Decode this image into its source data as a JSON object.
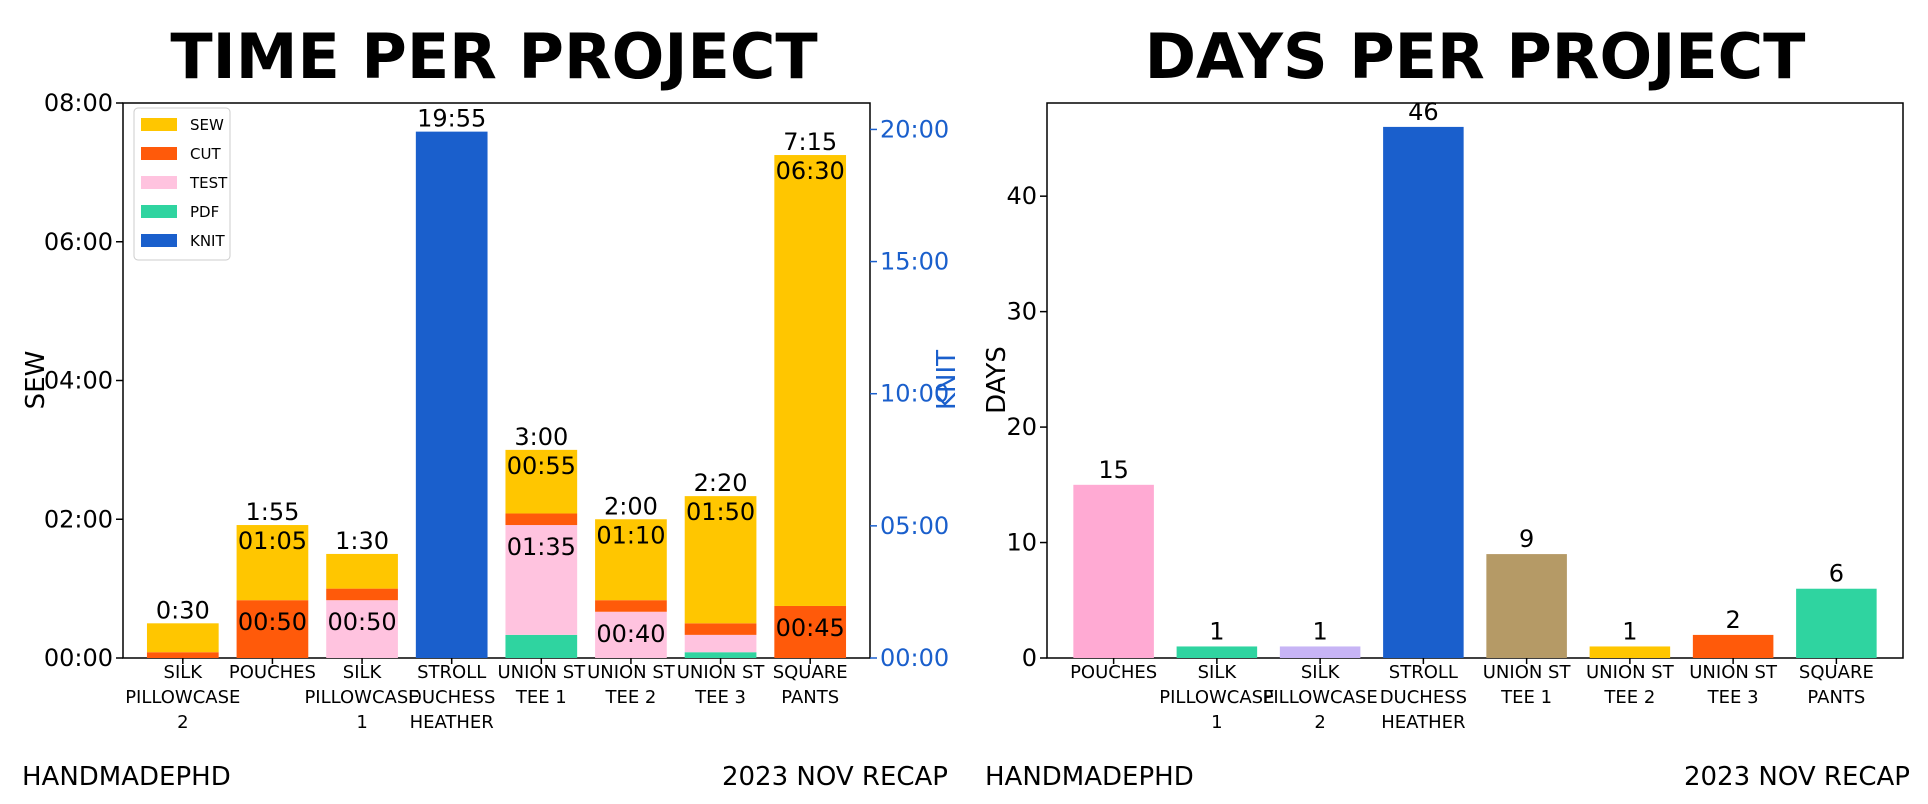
{
  "colors": {
    "SEW": "#ffc600",
    "CUT": "#ff5a0a",
    "TEST": "#ffc3df",
    "PDF": "#2fd4a0",
    "KNIT": "#1a5fcc",
    "knit_axis": "#1a5fcc",
    "days_pouches": "#ffaad3",
    "days_silk1": "#2fd4a0",
    "days_silk2": "#c7b4f5",
    "days_stroll": "#1a5fcc",
    "days_tee1": "#b59a66",
    "days_tee2": "#ffc600",
    "days_tee3": "#ff5a0a",
    "days_square": "#2fd4a0"
  },
  "footer": {
    "left1": "HANDMADEPHD",
    "right1": "2023 NOV RECAP",
    "left2": "HANDMADEPHD",
    "right2": "2023 NOV RECAP"
  },
  "chart_data": [
    {
      "type": "bar",
      "stacked": true,
      "title": "TIME PER PROJECT",
      "ylabel": "SEW",
      "y2label": "KNIT",
      "ylim_minutes": [
        0,
        480
      ],
      "y2lim_minutes": [
        0,
        1260
      ],
      "yticks": [
        "00:00",
        "02:00",
        "04:00",
        "06:00",
        "08:00"
      ],
      "y2ticks": [
        "00:00",
        "05:00",
        "10:00",
        "15:00",
        "20:00"
      ],
      "legend": [
        "SEW",
        "CUT",
        "TEST",
        "PDF",
        "KNIT"
      ],
      "legend_position": "top-left",
      "categories": [
        {
          "lines": [
            "SILK",
            "PILLOWCASE",
            "2"
          ],
          "total": "0:30",
          "axis": "left",
          "segments": [
            {
              "name": "CUT",
              "minutes": 5
            },
            {
              "name": "SEW",
              "minutes": 25
            }
          ]
        },
        {
          "lines": [
            "POUCHES"
          ],
          "total": "1:55",
          "axis": "left",
          "segments": [
            {
              "name": "CUT",
              "minutes": 50,
              "label": "00:50"
            },
            {
              "name": "SEW",
              "minutes": 65,
              "label": "01:05"
            }
          ]
        },
        {
          "lines": [
            "SILK",
            "PILLOWCASE",
            "1"
          ],
          "total": "1:30",
          "axis": "left",
          "segments": [
            {
              "name": "TEST",
              "minutes": 50,
              "label": "00:50"
            },
            {
              "name": "CUT",
              "minutes": 10
            },
            {
              "name": "SEW",
              "minutes": 30
            }
          ]
        },
        {
          "lines": [
            "STROLL",
            "DUCHESS",
            "HEATHER"
          ],
          "total": "19:55",
          "axis": "right",
          "segments": [
            {
              "name": "KNIT",
              "minutes": 1195
            }
          ]
        },
        {
          "lines": [
            "UNION ST",
            "TEE 1"
          ],
          "total": "3:00",
          "axis": "left",
          "segments": [
            {
              "name": "PDF",
              "minutes": 20
            },
            {
              "name": "TEST",
              "minutes": 95,
              "label": "01:35"
            },
            {
              "name": "CUT",
              "minutes": 10
            },
            {
              "name": "SEW",
              "minutes": 55,
              "label": "00:55"
            }
          ]
        },
        {
          "lines": [
            "UNION ST",
            "TEE 2"
          ],
          "total": "2:00",
          "axis": "left",
          "segments": [
            {
              "name": "TEST",
              "minutes": 40,
              "label": "00:40"
            },
            {
              "name": "CUT",
              "minutes": 10
            },
            {
              "name": "SEW",
              "minutes": 70,
              "label": "01:10"
            }
          ]
        },
        {
          "lines": [
            "UNION ST",
            "TEE 3"
          ],
          "total": "2:20",
          "axis": "left",
          "segments": [
            {
              "name": "PDF",
              "minutes": 5
            },
            {
              "name": "TEST",
              "minutes": 15
            },
            {
              "name": "CUT",
              "minutes": 10
            },
            {
              "name": "SEW",
              "minutes": 110,
              "label": "01:50"
            }
          ]
        },
        {
          "lines": [
            "SQUARE",
            "PANTS"
          ],
          "total": "7:15",
          "axis": "left",
          "segments": [
            {
              "name": "CUT",
              "minutes": 45,
              "label": "00:45"
            },
            {
              "name": "SEW",
              "minutes": 390,
              "label": "06:30"
            }
          ]
        }
      ]
    },
    {
      "type": "bar",
      "title": "DAYS PER PROJECT",
      "ylabel": "DAYS",
      "ylim": [
        0,
        46
      ],
      "yticks": [
        0,
        10,
        20,
        30,
        40
      ],
      "categories": [
        {
          "lines": [
            "POUCHES"
          ],
          "value": 15,
          "color_key": "days_pouches"
        },
        {
          "lines": [
            "SILK",
            "PILLOWCASE",
            "1"
          ],
          "value": 1,
          "color_key": "days_silk1"
        },
        {
          "lines": [
            "SILK",
            "PILLOWCASE",
            "2"
          ],
          "value": 1,
          "color_key": "days_silk2"
        },
        {
          "lines": [
            "STROLL",
            "DUCHESS",
            "HEATHER"
          ],
          "value": 46,
          "color_key": "days_stroll"
        },
        {
          "lines": [
            "UNION ST",
            "TEE 1"
          ],
          "value": 9,
          "color_key": "days_tee1"
        },
        {
          "lines": [
            "UNION ST",
            "TEE 2"
          ],
          "value": 1,
          "color_key": "days_tee2"
        },
        {
          "lines": [
            "UNION ST",
            "TEE 3"
          ],
          "value": 2,
          "color_key": "days_tee3"
        },
        {
          "lines": [
            "SQUARE",
            "PANTS"
          ],
          "value": 6,
          "color_key": "days_square"
        }
      ]
    }
  ]
}
